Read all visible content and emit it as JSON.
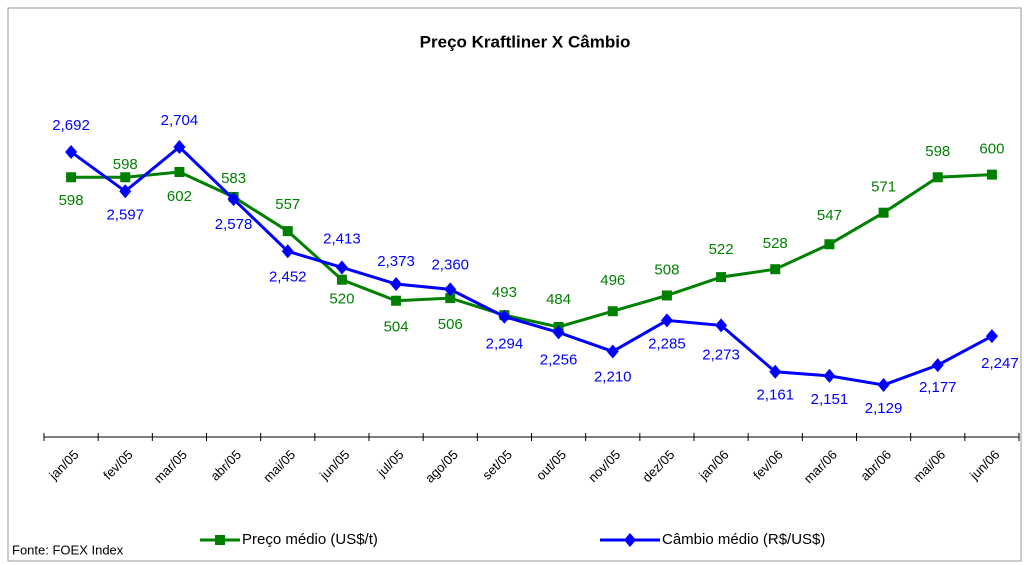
{
  "chart_data": {
    "type": "line",
    "title": "Preço Kraftliner X Câmbio",
    "source": "Fonte: FOEX Index",
    "categories": [
      "jan/05",
      "fev/05",
      "mar/05",
      "abr/05",
      "mai/05",
      "jun/05",
      "jul/05",
      "ago/05",
      "set/05",
      "out/05",
      "nov/05",
      "dez/05",
      "jan/06",
      "fev/06",
      "mar/06",
      "abr/06",
      "mai/06",
      "jun/06"
    ],
    "series": [
      {
        "name": "Preço médio (US$/t)",
        "color": "#008000",
        "marker": "square",
        "values": [
          598,
          598,
          602,
          583,
          557,
          520,
          504,
          506,
          493,
          484,
          496,
          508,
          522,
          528,
          547,
          571,
          598,
          600
        ]
      },
      {
        "name": "Câmbio médio (R$/US$)",
        "color": "#0000ff",
        "marker": "diamond",
        "values": [
          2.692,
          2.597,
          2.704,
          2.578,
          2.452,
          2.413,
          2.373,
          2.36,
          2.294,
          2.256,
          2.21,
          2.285,
          2.273,
          2.161,
          2.151,
          2.129,
          2.177,
          2.247
        ],
        "value_labels": [
          "2,692",
          "2,597",
          "2,704",
          "2,578",
          "2,452",
          "2,413",
          "2,373",
          "2,360",
          "2,294",
          "2,256",
          "2,210",
          "2,285",
          "2,273",
          "2,161",
          "2,151",
          "2,129",
          "2,177",
          "2,247"
        ]
      }
    ]
  }
}
